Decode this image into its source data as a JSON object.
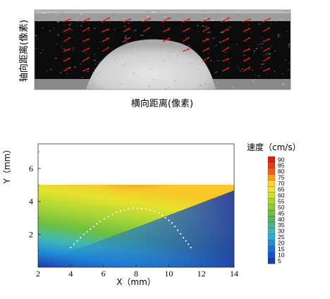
{
  "panel_a": {
    "xlabel": "横向距离(像素)",
    "ylabel": "轴向距离(像素)",
    "arrow_color": "#e0201c"
  },
  "chart_data": {
    "type": "heatmap",
    "title": "",
    "xlabel": "X（mm）",
    "ylabel": "Y（mm）",
    "xlim": [
      2,
      14
    ],
    "ylim": [
      0,
      7.5
    ],
    "x_ticks": [
      2,
      4,
      6,
      8,
      10,
      12,
      14
    ],
    "y_ticks": [
      2,
      4,
      6
    ],
    "data_extent": {
      "x": [
        2,
        14
      ],
      "y": [
        0,
        5
      ]
    },
    "colorbar": {
      "title": "速度（cm/s）",
      "levels": [
        90,
        85,
        80,
        75,
        70,
        65,
        60,
        55,
        50,
        45,
        40,
        35,
        30,
        25,
        20,
        15,
        10,
        5
      ],
      "colors": [
        "#e01a10",
        "#ec3a12",
        "#f25c1a",
        "#f8a020",
        "#fcd52a",
        "#f2e22c",
        "#c8df2e",
        "#a9d636",
        "#8cca3a",
        "#6dc040",
        "#55b75a",
        "#49b48a",
        "#3fb8b4",
        "#30aad6",
        "#1f8fd8",
        "#1b6ed2",
        "#1b52c6",
        "#1c3aaa"
      ]
    },
    "wall_boundary": {
      "x": [
        4.0,
        4.8,
        5.8,
        6.8,
        7.8,
        8.6,
        9.4,
        10.2,
        10.9,
        11.5
      ],
      "y": [
        1.2,
        2.0,
        2.8,
        3.35,
        3.6,
        3.55,
        3.3,
        2.7,
        1.8,
        1.0
      ]
    }
  }
}
